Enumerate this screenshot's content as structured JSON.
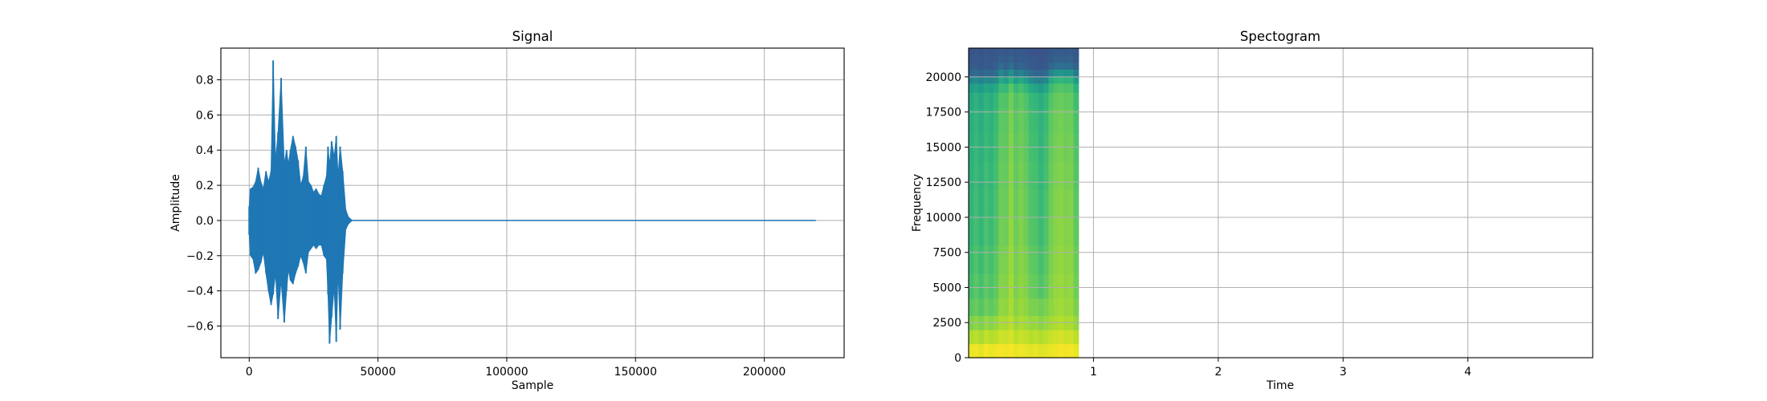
{
  "chart_data": [
    {
      "type": "line",
      "title": "Signal",
      "xlabel": "Sample",
      "ylabel": "Amplitude",
      "xlim": [
        -11000,
        231000
      ],
      "ylim": [
        -0.78,
        0.98
      ],
      "x_ticks": [
        0,
        50000,
        100000,
        150000,
        200000
      ],
      "x_tick_labels": [
        "0",
        "50000",
        "100000",
        "150000",
        "200000"
      ],
      "y_ticks": [
        -0.6,
        -0.4,
        -0.2,
        0.0,
        0.2,
        0.4,
        0.6,
        0.8
      ],
      "y_tick_labels": [
        "−0.6",
        "−0.4",
        "−0.2",
        "0.0",
        "0.2",
        "0.4",
        "0.6",
        "0.8"
      ],
      "grid": true,
      "color": "#1f77b4",
      "series": [
        {
          "x": [
            0,
            500,
            1500,
            2500,
            3500,
            4500,
            5500,
            6500,
            7500,
            8500,
            9300,
            10200,
            11200,
            12400,
            13600,
            14500,
            15200,
            16000,
            17000,
            18000,
            19000,
            20000,
            21000,
            22000,
            23000,
            24000,
            25000,
            26000,
            27000,
            28000,
            29000,
            30000,
            30600,
            31200,
            32000,
            33000,
            33800,
            34500,
            35300,
            36300,
            37500,
            38500,
            40000,
            220000
          ],
          "ymax": [
            0.08,
            0.18,
            0.19,
            0.22,
            0.3,
            0.22,
            0.18,
            0.28,
            0.22,
            0.28,
            0.91,
            0.34,
            0.5,
            0.81,
            0.32,
            0.4,
            0.32,
            0.4,
            0.48,
            0.42,
            0.34,
            0.2,
            0.25,
            0.42,
            0.22,
            0.2,
            0.16,
            0.18,
            0.15,
            0.14,
            0.2,
            0.25,
            0.42,
            0.31,
            0.45,
            0.36,
            0.48,
            0.25,
            0.42,
            0.28,
            0.06,
            0.02,
            0.0,
            0.0
          ],
          "ymin": [
            -0.08,
            -0.2,
            -0.22,
            -0.3,
            -0.28,
            -0.24,
            -0.18,
            -0.3,
            -0.4,
            -0.48,
            -0.42,
            -0.3,
            -0.56,
            -0.34,
            -0.58,
            -0.4,
            -0.28,
            -0.34,
            -0.36,
            -0.3,
            -0.26,
            -0.2,
            -0.24,
            -0.3,
            -0.18,
            -0.16,
            -0.14,
            -0.16,
            -0.14,
            -0.14,
            -0.2,
            -0.22,
            -0.42,
            -0.7,
            -0.55,
            -0.38,
            -0.69,
            -0.28,
            -0.62,
            -0.3,
            -0.05,
            -0.02,
            0.0,
            0.0
          ]
        }
      ]
    },
    {
      "type": "heatmap",
      "title": "Spectogram",
      "xlabel": "Time",
      "ylabel": "Frequency",
      "xlim": [
        0,
        5.0
      ],
      "ylim": [
        0,
        22050
      ],
      "x_ticks": [
        1,
        2,
        3,
        4
      ],
      "x_tick_labels": [
        "1",
        "2",
        "3",
        "4"
      ],
      "y_ticks": [
        0,
        2500,
        5000,
        7500,
        10000,
        12500,
        15000,
        17500,
        20000
      ],
      "y_tick_labels": [
        "0",
        "2500",
        "5000",
        "7500",
        "10000",
        "12500",
        "15000",
        "17500",
        "20000"
      ],
      "grid": true,
      "colormap": "viridis",
      "data_extent_time": [
        0,
        0.88
      ],
      "time_bins": [
        0.02,
        0.06,
        0.1,
        0.14,
        0.18,
        0.22,
        0.26,
        0.3,
        0.34,
        0.38,
        0.42,
        0.46,
        0.5,
        0.54,
        0.58,
        0.62,
        0.66,
        0.7,
        0.74,
        0.78,
        0.82,
        0.86
      ],
      "freq_bins": [
        500,
        1500,
        2500,
        3500,
        5000,
        7000,
        9000,
        11000,
        13000,
        15000,
        17000,
        18500,
        19300,
        19800,
        20300,
        20800,
        21300,
        21800
      ],
      "intensity": [
        [
          0.97,
          0.98,
          0.96,
          0.99,
          0.97,
          0.98,
          0.99,
          0.98,
          0.99,
          0.97,
          0.98,
          0.97,
          0.96,
          0.97,
          0.95,
          0.96,
          0.97,
          0.98,
          0.99,
          0.98,
          0.99,
          0.97
        ],
        [
          0.88,
          0.9,
          0.87,
          0.91,
          0.89,
          0.9,
          0.93,
          0.92,
          0.94,
          0.9,
          0.92,
          0.91,
          0.89,
          0.9,
          0.88,
          0.9,
          0.92,
          0.93,
          0.94,
          0.92,
          0.93,
          0.9
        ],
        [
          0.8,
          0.83,
          0.8,
          0.84,
          0.82,
          0.84,
          0.88,
          0.87,
          0.9,
          0.85,
          0.88,
          0.86,
          0.84,
          0.85,
          0.82,
          0.84,
          0.86,
          0.88,
          0.89,
          0.87,
          0.88,
          0.84
        ],
        [
          0.74,
          0.77,
          0.73,
          0.78,
          0.75,
          0.78,
          0.84,
          0.83,
          0.87,
          0.82,
          0.85,
          0.83,
          0.8,
          0.8,
          0.78,
          0.8,
          0.83,
          0.85,
          0.86,
          0.84,
          0.85,
          0.8
        ],
        [
          0.7,
          0.74,
          0.7,
          0.75,
          0.72,
          0.75,
          0.82,
          0.81,
          0.86,
          0.8,
          0.83,
          0.81,
          0.77,
          0.76,
          0.72,
          0.76,
          0.81,
          0.84,
          0.85,
          0.83,
          0.84,
          0.78
        ],
        [
          0.68,
          0.72,
          0.68,
          0.73,
          0.7,
          0.74,
          0.8,
          0.8,
          0.85,
          0.79,
          0.82,
          0.8,
          0.75,
          0.74,
          0.7,
          0.74,
          0.8,
          0.83,
          0.84,
          0.82,
          0.83,
          0.77
        ],
        [
          0.66,
          0.7,
          0.66,
          0.71,
          0.68,
          0.72,
          0.79,
          0.78,
          0.84,
          0.78,
          0.81,
          0.78,
          0.73,
          0.72,
          0.68,
          0.72,
          0.79,
          0.82,
          0.83,
          0.81,
          0.82,
          0.75
        ],
        [
          0.65,
          0.69,
          0.65,
          0.7,
          0.67,
          0.71,
          0.78,
          0.77,
          0.83,
          0.77,
          0.8,
          0.77,
          0.72,
          0.71,
          0.67,
          0.71,
          0.78,
          0.81,
          0.82,
          0.8,
          0.81,
          0.74
        ],
        [
          0.64,
          0.68,
          0.64,
          0.69,
          0.66,
          0.7,
          0.77,
          0.76,
          0.82,
          0.76,
          0.79,
          0.76,
          0.71,
          0.7,
          0.66,
          0.7,
          0.77,
          0.8,
          0.81,
          0.79,
          0.8,
          0.73
        ],
        [
          0.63,
          0.67,
          0.63,
          0.68,
          0.65,
          0.69,
          0.76,
          0.75,
          0.81,
          0.75,
          0.78,
          0.75,
          0.7,
          0.69,
          0.65,
          0.69,
          0.76,
          0.79,
          0.8,
          0.78,
          0.79,
          0.72
        ],
        [
          0.62,
          0.66,
          0.62,
          0.67,
          0.64,
          0.68,
          0.75,
          0.74,
          0.8,
          0.74,
          0.77,
          0.74,
          0.69,
          0.68,
          0.64,
          0.68,
          0.75,
          0.78,
          0.79,
          0.77,
          0.78,
          0.71
        ],
        [
          0.6,
          0.64,
          0.6,
          0.65,
          0.62,
          0.66,
          0.73,
          0.72,
          0.78,
          0.72,
          0.75,
          0.72,
          0.67,
          0.66,
          0.62,
          0.66,
          0.73,
          0.76,
          0.77,
          0.75,
          0.76,
          0.69
        ],
        [
          0.55,
          0.58,
          0.55,
          0.59,
          0.57,
          0.6,
          0.68,
          0.67,
          0.74,
          0.67,
          0.7,
          0.66,
          0.6,
          0.58,
          0.55,
          0.59,
          0.68,
          0.72,
          0.73,
          0.71,
          0.72,
          0.64
        ],
        [
          0.45,
          0.48,
          0.44,
          0.48,
          0.46,
          0.49,
          0.6,
          0.56,
          0.64,
          0.56,
          0.6,
          0.55,
          0.48,
          0.45,
          0.43,
          0.47,
          0.6,
          0.65,
          0.66,
          0.64,
          0.65,
          0.55
        ],
        [
          0.33,
          0.35,
          0.32,
          0.35,
          0.33,
          0.36,
          0.48,
          0.42,
          0.5,
          0.41,
          0.45,
          0.4,
          0.35,
          0.33,
          0.32,
          0.34,
          0.46,
          0.52,
          0.53,
          0.51,
          0.52,
          0.42
        ],
        [
          0.28,
          0.29,
          0.27,
          0.29,
          0.28,
          0.3,
          0.35,
          0.31,
          0.37,
          0.3,
          0.33,
          0.3,
          0.28,
          0.27,
          0.27,
          0.28,
          0.33,
          0.36,
          0.37,
          0.35,
          0.36,
          0.31
        ],
        [
          0.27,
          0.28,
          0.27,
          0.28,
          0.27,
          0.28,
          0.3,
          0.29,
          0.31,
          0.28,
          0.29,
          0.28,
          0.27,
          0.27,
          0.26,
          0.27,
          0.29,
          0.31,
          0.31,
          0.3,
          0.31,
          0.28
        ],
        [
          0.26,
          0.27,
          0.26,
          0.27,
          0.26,
          0.27,
          0.28,
          0.27,
          0.29,
          0.27,
          0.28,
          0.27,
          0.26,
          0.26,
          0.26,
          0.26,
          0.28,
          0.29,
          0.29,
          0.28,
          0.29,
          0.27
        ]
      ]
    }
  ]
}
